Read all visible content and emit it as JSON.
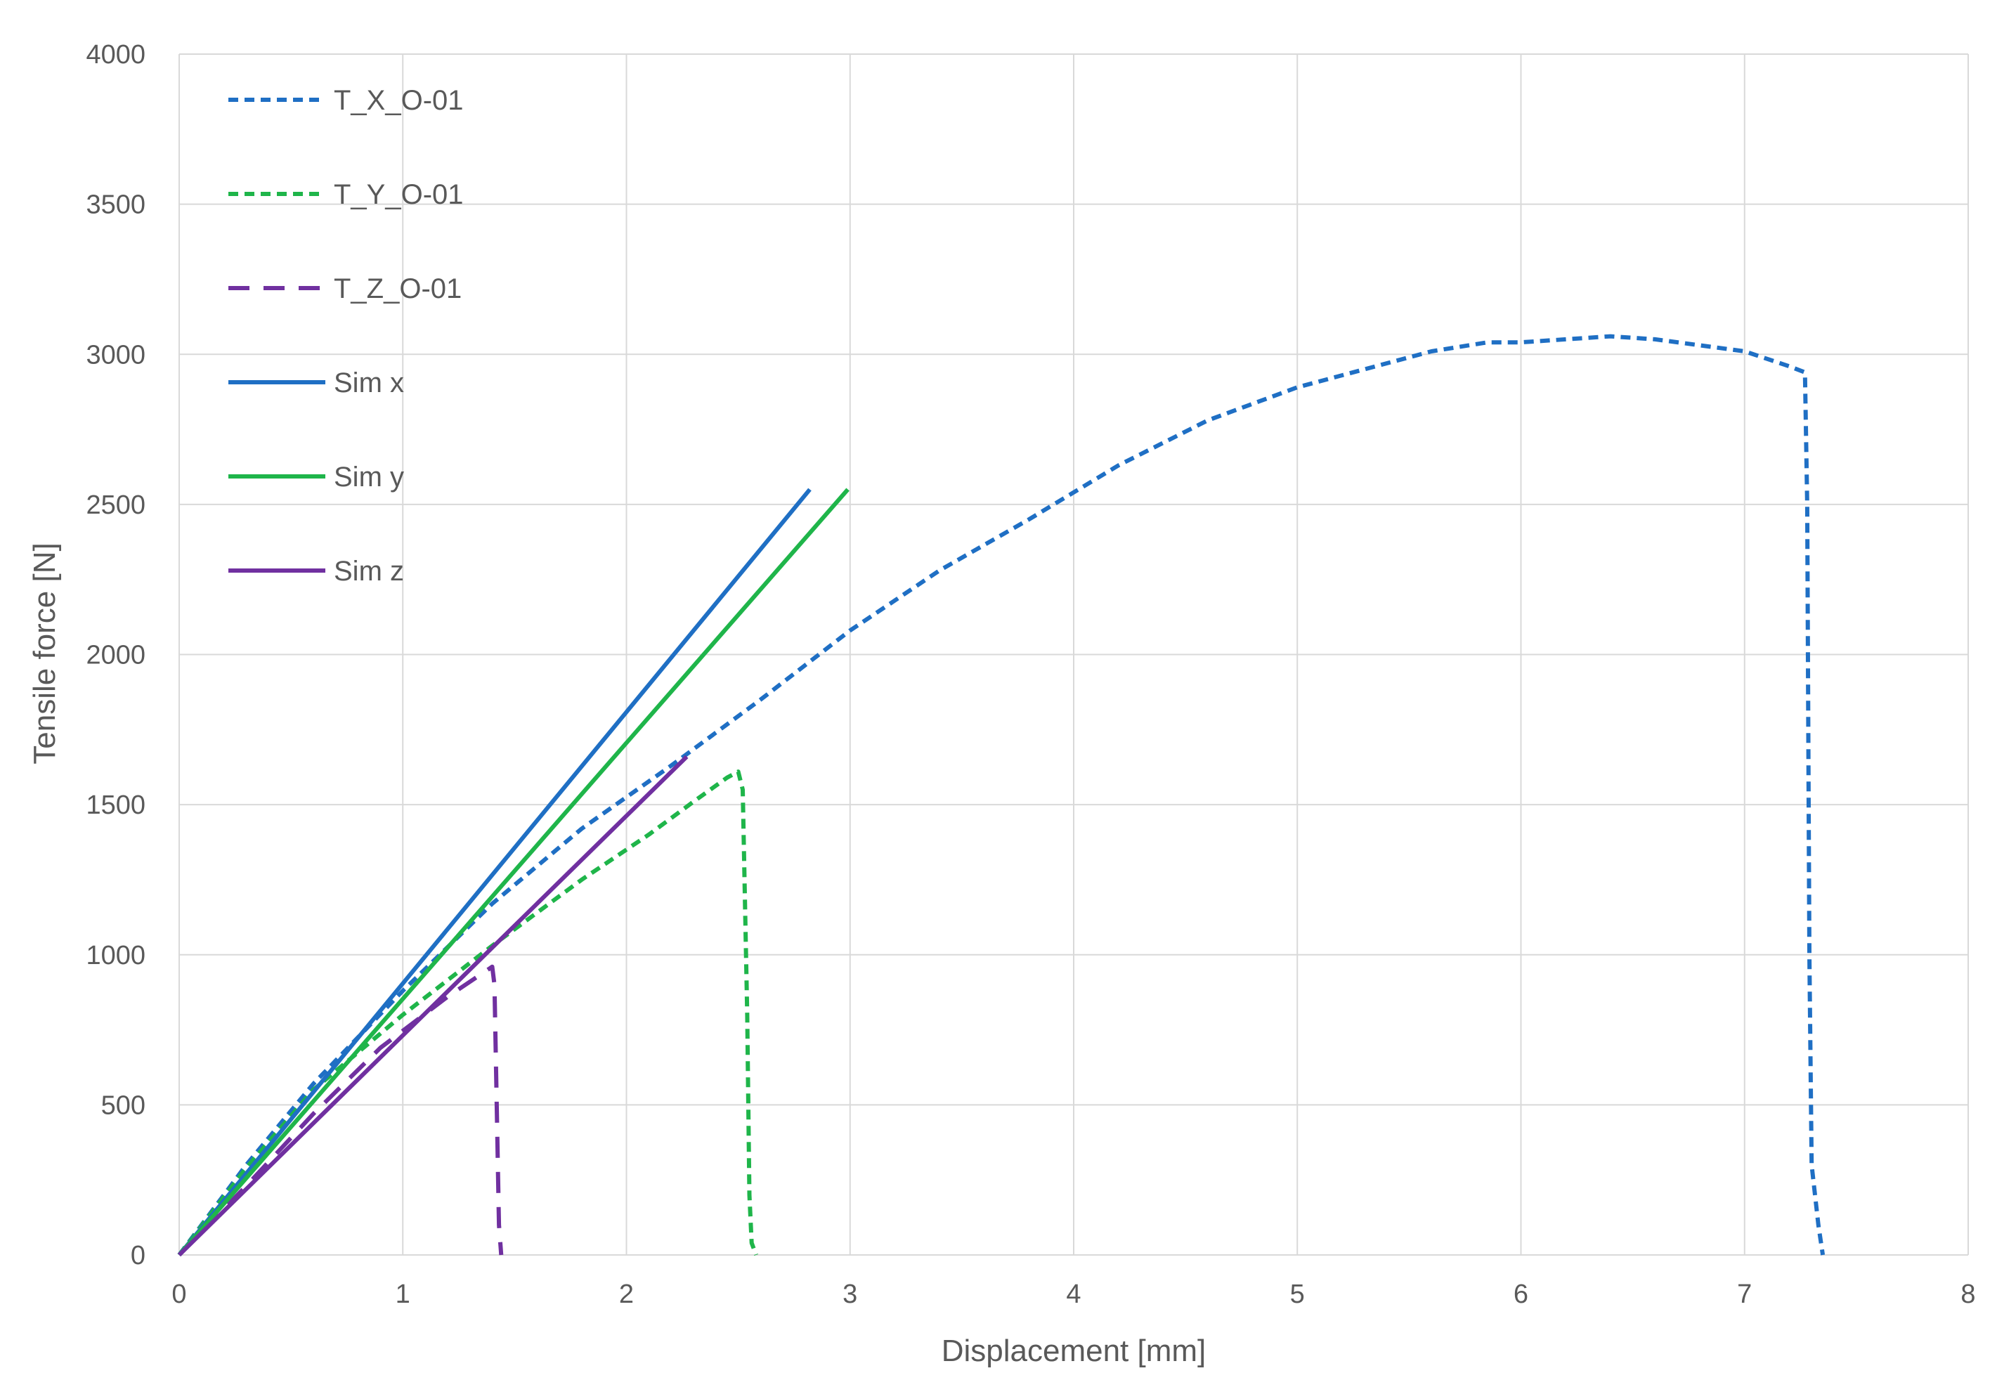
{
  "chart_data": {
    "type": "line",
    "title": "",
    "xlabel": "Displacement [mm]",
    "ylabel": "Tensile force [N]",
    "xlim": [
      0,
      8
    ],
    "ylim": [
      0,
      4000
    ],
    "xticks": [
      0,
      1,
      2,
      3,
      4,
      5,
      6,
      7,
      8
    ],
    "yticks": [
      0,
      500,
      1000,
      1500,
      2000,
      2500,
      3000,
      3500,
      4000
    ],
    "grid": true,
    "legend_position": "top-left",
    "series": [
      {
        "name": "T_X_O-01",
        "color": "#1f6fc4",
        "dash": "dashed",
        "x": [
          0,
          0.3,
          0.6,
          1.0,
          1.4,
          1.8,
          2.2,
          2.6,
          3.0,
          3.4,
          3.8,
          4.2,
          4.6,
          5.0,
          5.3,
          5.6,
          5.85,
          6.0,
          6.2,
          6.4,
          6.6,
          6.8,
          7.0,
          7.2,
          7.27,
          7.28,
          7.29,
          7.3,
          7.33,
          7.35
        ],
        "y": [
          0,
          300,
          570,
          880,
          1170,
          1420,
          1630,
          1850,
          2080,
          2280,
          2450,
          2630,
          2780,
          2890,
          2950,
          3010,
          3040,
          3040,
          3050,
          3060,
          3050,
          3030,
          3010,
          2960,
          2940,
          2500,
          1000,
          300,
          100,
          0
        ]
      },
      {
        "name": "T_Y_O-01",
        "color": "#1fb54a",
        "dash": "dashed",
        "x": [
          0,
          0.3,
          0.6,
          1.0,
          1.4,
          1.8,
          2.1,
          2.3,
          2.45,
          2.5,
          2.52,
          2.54,
          2.55,
          2.56,
          2.58
        ],
        "y": [
          0,
          290,
          550,
          800,
          1030,
          1250,
          1400,
          1510,
          1590,
          1610,
          1550,
          800,
          200,
          40,
          0
        ]
      },
      {
        "name": "T_Z_O-01",
        "color": "#7030a0",
        "dash": "long-dashed",
        "x": [
          0,
          0.3,
          0.6,
          0.9,
          1.2,
          1.4,
          1.41,
          1.42,
          1.43,
          1.44
        ],
        "y": [
          0,
          230,
          470,
          690,
          860,
          960,
          900,
          500,
          100,
          0
        ]
      },
      {
        "name": "Sim x",
        "color": "#1f6fc4",
        "dash": "solid",
        "x": [
          0,
          2.82
        ],
        "y": [
          0,
          2550
        ]
      },
      {
        "name": "Sim y",
        "color": "#1fb54a",
        "dash": "solid",
        "x": [
          0,
          2.99
        ],
        "y": [
          0,
          2550
        ]
      },
      {
        "name": "Sim z",
        "color": "#7030a0",
        "dash": "solid",
        "x": [
          0,
          2.27
        ],
        "y": [
          0,
          1660
        ]
      }
    ]
  }
}
